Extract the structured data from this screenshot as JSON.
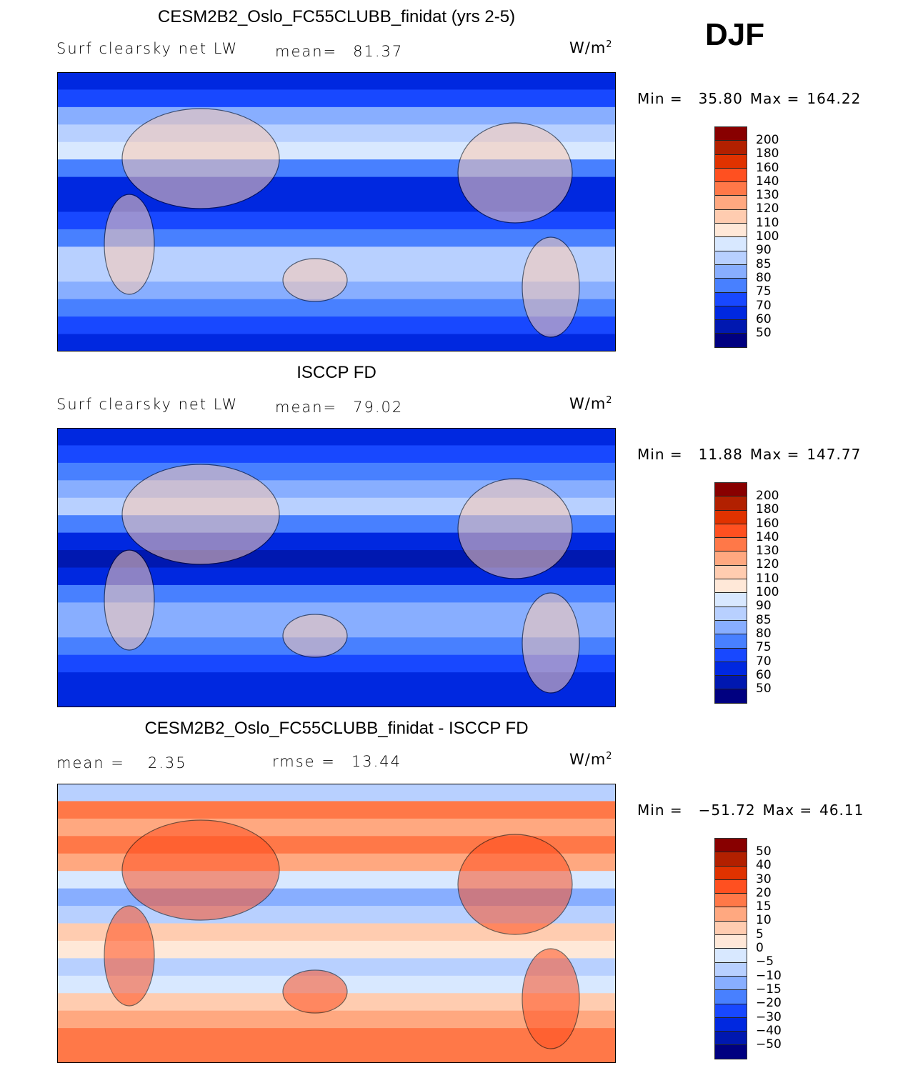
{
  "header": {
    "season": "DJF"
  },
  "colors": [
    "#880000",
    "#B22000",
    "#E03200",
    "#FF5020",
    "#FF7848",
    "#FFA880",
    "#FFCCB0",
    "#FFE8D8",
    "#D8E8FF",
    "#B8D0FF",
    "#88AEFF",
    "#4880FF",
    "#1848FF",
    "#0028E0",
    "#0018B0",
    "#000080"
  ],
  "panels": [
    {
      "title": "CESM2B2_Oslo_FC55CLUBB_finidat (yrs 2-5)",
      "variable": "Surf clearsky net LW",
      "stat1_label": "mean=",
      "stat1_value": "81.37",
      "stat2_label": "",
      "stat2_value": "",
      "units": "W/m",
      "units_exp": "2",
      "min_label": "Min =",
      "min_value": "35.80",
      "max_label": "Max =",
      "max_value": "164.22",
      "levels": [
        "200",
        "180",
        "160",
        "140",
        "130",
        "120",
        "110",
        "100",
        "90",
        "85",
        "80",
        "75",
        "70",
        "60",
        "50"
      ],
      "zonal_bins": [
        13,
        12,
        10,
        9,
        8,
        11,
        13,
        13,
        12,
        11,
        9,
        9,
        10,
        11,
        12,
        13
      ]
    },
    {
      "title": "ISCCP FD",
      "variable": "Surf clearsky net LW",
      "stat1_label": "mean=",
      "stat1_value": "79.02",
      "stat2_label": "",
      "stat2_value": "",
      "units": "W/m",
      "units_exp": "2",
      "min_label": "Min =",
      "min_value": "11.88",
      "max_label": "Max =",
      "max_value": "147.77",
      "levels": [
        "200",
        "180",
        "160",
        "140",
        "130",
        "120",
        "110",
        "100",
        "90",
        "85",
        "80",
        "75",
        "70",
        "60",
        "50"
      ],
      "zonal_bins": [
        13,
        12,
        11,
        10,
        9,
        11,
        13,
        14,
        13,
        11,
        10,
        10,
        11,
        12,
        13,
        13
      ]
    },
    {
      "title": "CESM2B2_Oslo_FC55CLUBB_finidat - ISCCP FD",
      "variable": "",
      "stat1_label": "mean =",
      "stat1_value": "2.35",
      "stat2_label": "rmse =",
      "stat2_value": "13.44",
      "units": "W/m",
      "units_exp": "2",
      "min_label": "Min =",
      "min_value": "−51.72",
      "max_label": "Max =",
      "max_value": "46.11",
      "levels": [
        "50",
        "40",
        "30",
        "20",
        "15",
        "10",
        "5",
        "0",
        "−5",
        "−10",
        "−15",
        "−20",
        "−30",
        "−40",
        "−50"
      ],
      "zonal_bins": [
        9,
        4,
        5,
        4,
        5,
        8,
        10,
        9,
        6,
        7,
        9,
        8,
        6,
        5,
        4,
        4
      ]
    }
  ]
}
